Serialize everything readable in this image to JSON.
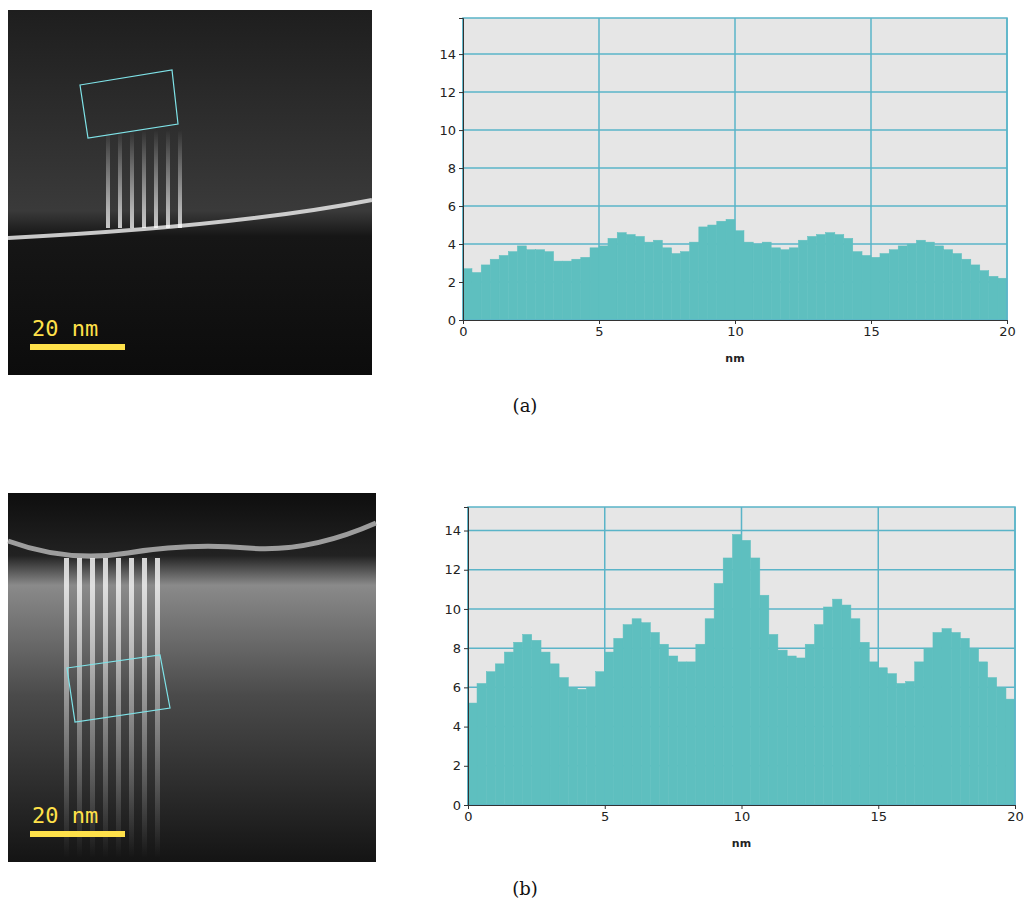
{
  "chart_data": [
    {
      "type": "histogram",
      "title": "(a)",
      "x_label": "nm",
      "annotations": [
        "20 nm"
      ],
      "bins": [
        0,
        0.33,
        0.67,
        1,
        1.33,
        1.67,
        2,
        2.33,
        2.67,
        3,
        3.33,
        3.67,
        4,
        4.33,
        4.67,
        5,
        5.33,
        5.67,
        6,
        6.33,
        6.67,
        7,
        7.33,
        7.67,
        8,
        8.33,
        8.67,
        9,
        9.33,
        9.67,
        10,
        10.33,
        10.67,
        11,
        11.33,
        11.67,
        12,
        12.33,
        12.67,
        13,
        13.33,
        13.67,
        14,
        14.33,
        14.67,
        15,
        15.33,
        15.67,
        16,
        16.33,
        16.67,
        17,
        17.33,
        17.67,
        18,
        18.33,
        18.67,
        19,
        19.33,
        19.67,
        20
      ],
      "values": [
        2.7,
        2.5,
        2.9,
        3.2,
        3.4,
        3.6,
        3.9,
        3.7,
        3.7,
        3.6,
        3.1,
        3.1,
        3.2,
        3.3,
        3.8,
        3.9,
        4.3,
        4.6,
        4.5,
        4.4,
        4.1,
        4.2,
        3.8,
        3.5,
        3.6,
        4.1,
        4.9,
        5.0,
        5.2,
        5.3,
        4.7,
        4.1,
        4.0,
        4.1,
        3.8,
        3.7,
        3.8,
        4.2,
        4.4,
        4.5,
        4.6,
        4.5,
        4.3,
        3.6,
        3.4,
        3.3,
        3.5,
        3.7,
        3.9,
        4.0,
        4.2,
        4.1,
        3.9,
        3.7,
        3.5,
        3.2,
        2.9,
        2.6,
        2.3,
        2.2
      ],
      "color": "#5ebfbf",
      "xlim": [
        0,
        20
      ],
      "xticks": [
        0,
        5,
        10,
        15,
        20
      ],
      "ylim": [
        0,
        15.9
      ],
      "yticks": [
        0,
        2,
        4,
        6,
        8,
        10,
        12,
        14
      ],
      "grid": true
    },
    {
      "type": "histogram",
      "title": "(b)",
      "x_label": "nm",
      "annotations": [
        "20 nm"
      ],
      "bins": [
        0,
        0.33,
        0.67,
        1,
        1.33,
        1.67,
        2,
        2.33,
        2.67,
        3,
        3.33,
        3.67,
        4,
        4.33,
        4.67,
        5,
        5.33,
        5.67,
        6,
        6.33,
        6.67,
        7,
        7.33,
        7.67,
        8,
        8.33,
        8.67,
        9,
        9.33,
        9.67,
        10,
        10.33,
        10.67,
        11,
        11.33,
        11.67,
        12,
        12.33,
        12.67,
        13,
        13.33,
        13.67,
        14,
        14.33,
        14.67,
        15,
        15.33,
        15.67,
        16,
        16.33,
        16.67,
        17,
        17.33,
        17.67,
        18,
        18.33,
        18.67,
        19,
        19.33,
        19.67,
        20
      ],
      "values": [
        5.2,
        6.2,
        6.8,
        7.2,
        7.8,
        8.3,
        8.7,
        8.4,
        7.8,
        7.2,
        6.5,
        6.0,
        5.9,
        6.0,
        6.8,
        7.8,
        8.5,
        9.2,
        9.5,
        9.3,
        8.8,
        8.2,
        7.6,
        7.3,
        7.3,
        8.2,
        9.5,
        11.3,
        12.6,
        13.8,
        13.5,
        12.6,
        10.7,
        8.7,
        7.9,
        7.6,
        7.5,
        8.2,
        9.2,
        10.1,
        10.5,
        10.2,
        9.5,
        8.3,
        7.3,
        7.0,
        6.7,
        6.2,
        6.3,
        7.3,
        8.0,
        8.8,
        9.0,
        8.8,
        8.5,
        8.0,
        7.3,
        6.5,
        6.0,
        5.4
      ],
      "color": "#5ebfbf",
      "xlim": [
        0,
        20
      ],
      "xticks": [
        0,
        5,
        10,
        15,
        20
      ],
      "ylim": [
        0,
        15.2
      ],
      "yticks": [
        0,
        2,
        4,
        6,
        8,
        10,
        12,
        14
      ],
      "grid": true
    }
  ]
}
